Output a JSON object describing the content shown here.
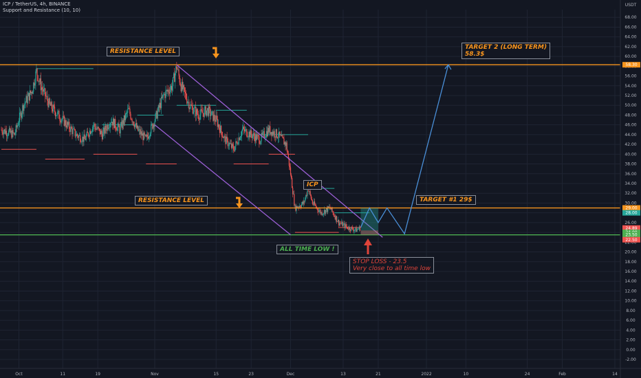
{
  "header": {
    "symbol": "ICP / TetherUS, 4h, BINANCE",
    "indicator": "Support and Resistance (10, 10)"
  },
  "colors": {
    "background": "#131722",
    "grid": "#1f2433",
    "up": "#26a69a",
    "down": "#ef5350",
    "resistance": "#f7941d",
    "support": "#4caf50",
    "channel": "#9c5fd6",
    "projection": "#4a90d9",
    "annotation_orange": "#f7941d",
    "annotation_red": "#e0443a",
    "annotation_green": "#4caf50"
  },
  "annotations": {
    "resistance_top": "RESISTANCE LEVEL",
    "resistance_mid": "RESISTANCE LEVEL",
    "target2_line1": "TARGET 2 (LONG TERM)",
    "target2_line2": "58.3$",
    "target1": "TARGET #1 29$",
    "icp": "ICP",
    "all_time_low": "ALL TIME LOW !",
    "stop_loss_line1": "STOP LOSS - 23.5",
    "stop_loss_line2": "Very close to all time low"
  },
  "chart_data": {
    "type": "candlestick",
    "title": "ICP / TetherUS, 4h, BINANCE",
    "y_axis": {
      "unit": "USDT",
      "min": -2,
      "max": 70,
      "ticks": [
        -2,
        0,
        2,
        4,
        6,
        8,
        10,
        12,
        14,
        16,
        18,
        20,
        22,
        24,
        26,
        28,
        30,
        32,
        34,
        36,
        38,
        40,
        42,
        44,
        46,
        48,
        50,
        52,
        54,
        56,
        58,
        60,
        62,
        64,
        66,
        68
      ]
    },
    "x_axis": {
      "ticks": [
        "Oct",
        "11",
        "19",
        "Nov",
        "15",
        "23",
        "Dec",
        "13",
        "21",
        "2022",
        "10",
        "24",
        "Feb",
        "14"
      ],
      "tick_day_index": [
        0,
        10,
        18,
        31,
        45,
        53,
        62,
        74,
        82,
        93,
        102,
        116,
        124,
        136
      ],
      "day_min": -4,
      "day_max": 136
    },
    "price_labels": [
      {
        "value": 58.3,
        "text": "58.30",
        "color": "#f7941d"
      },
      {
        "value": 29.0,
        "text": "29.00",
        "color": "#f7941d"
      },
      {
        "value": 28.0,
        "text": "28.00",
        "color": "#26a69a"
      },
      {
        "value": 24.89,
        "text": "24.89",
        "color": "#ef5350"
      },
      {
        "value": 24.0,
        "text": "24.00",
        "color": "#4caf50"
      },
      {
        "value": 23.5,
        "text": "23.50",
        "color": "#4caf50"
      },
      {
        "value": 22.5,
        "text": "22.50",
        "color": "#ef5350"
      }
    ],
    "levels": [
      {
        "name": "resistance-top",
        "value": 58.3,
        "color": "#f7941d"
      },
      {
        "name": "resistance-mid",
        "value": 29.0,
        "color": "#f7941d"
      },
      {
        "name": "all-time-low",
        "value": 23.5,
        "color": "#4caf50"
      }
    ],
    "price_path": [
      [
        -4,
        45
      ],
      [
        -1,
        44
      ],
      [
        1,
        50
      ],
      [
        3,
        53
      ],
      [
        4,
        57
      ],
      [
        5,
        54
      ],
      [
        7,
        50
      ],
      [
        9,
        48
      ],
      [
        11,
        46
      ],
      [
        13,
        44
      ],
      [
        15,
        43
      ],
      [
        17,
        46
      ],
      [
        19,
        44
      ],
      [
        21,
        47
      ],
      [
        23,
        45
      ],
      [
        25,
        49
      ],
      [
        27,
        45
      ],
      [
        29,
        43
      ],
      [
        31,
        47
      ],
      [
        33,
        52
      ],
      [
        35,
        54
      ],
      [
        36,
        58
      ],
      [
        37,
        54
      ],
      [
        39,
        50
      ],
      [
        41,
        48
      ],
      [
        43,
        49
      ],
      [
        45,
        47
      ],
      [
        47,
        43
      ],
      [
        49,
        41
      ],
      [
        51,
        45
      ],
      [
        53,
        44
      ],
      [
        55,
        43
      ],
      [
        57,
        45
      ],
      [
        59,
        44
      ],
      [
        61,
        42
      ],
      [
        62,
        36
      ],
      [
        63,
        29
      ],
      [
        65,
        30
      ],
      [
        66,
        33
      ],
      [
        67,
        30
      ],
      [
        69,
        28
      ],
      [
        71,
        29
      ],
      [
        73,
        26
      ],
      [
        75,
        25
      ],
      [
        77,
        24.5
      ],
      [
        78,
        25
      ]
    ],
    "channel": {
      "upper": [
        [
          36,
          58.3
        ],
        [
          83,
          23
        ]
      ],
      "lower": [
        [
          31,
          46
        ],
        [
          62,
          23.5
        ]
      ]
    },
    "projection": [
      [
        78,
        25
      ],
      [
        80,
        29
      ],
      [
        82,
        26
      ],
      [
        84,
        29
      ],
      [
        88,
        23.7
      ],
      [
        98,
        58.3
      ]
    ],
    "rects": [
      {
        "x1": 78,
        "x2": 82,
        "y1": 23.5,
        "y2": 29,
        "color": "#26a69a"
      },
      {
        "x1": 78,
        "x2": 82,
        "y1": 23.5,
        "y2": 24.4,
        "color": "#ef5350"
      }
    ],
    "support_resistance_segments": [
      [
        -4,
        41,
        4,
        "#ef5350"
      ],
      [
        4,
        57.5,
        17,
        "#26a69a"
      ],
      [
        6,
        39,
        15,
        "#ef5350"
      ],
      [
        17,
        40,
        27,
        "#ef5350"
      ],
      [
        19,
        46,
        27,
        "#26a69a"
      ],
      [
        27,
        48,
        33,
        "#26a69a"
      ],
      [
        29,
        38,
        36,
        "#ef5350"
      ],
      [
        36,
        50,
        45,
        "#26a69a"
      ],
      [
        45,
        49,
        52,
        "#26a69a"
      ],
      [
        49,
        38,
        57,
        "#ef5350"
      ],
      [
        53,
        44,
        66,
        "#26a69a"
      ],
      [
        57,
        40,
        63,
        "#ef5350"
      ],
      [
        65,
        33,
        72,
        "#26a69a"
      ],
      [
        63,
        24,
        73,
        "#ef5350"
      ],
      [
        72,
        28,
        80,
        "#26a69a"
      ],
      [
        73,
        25,
        78,
        "#ef5350"
      ]
    ]
  }
}
